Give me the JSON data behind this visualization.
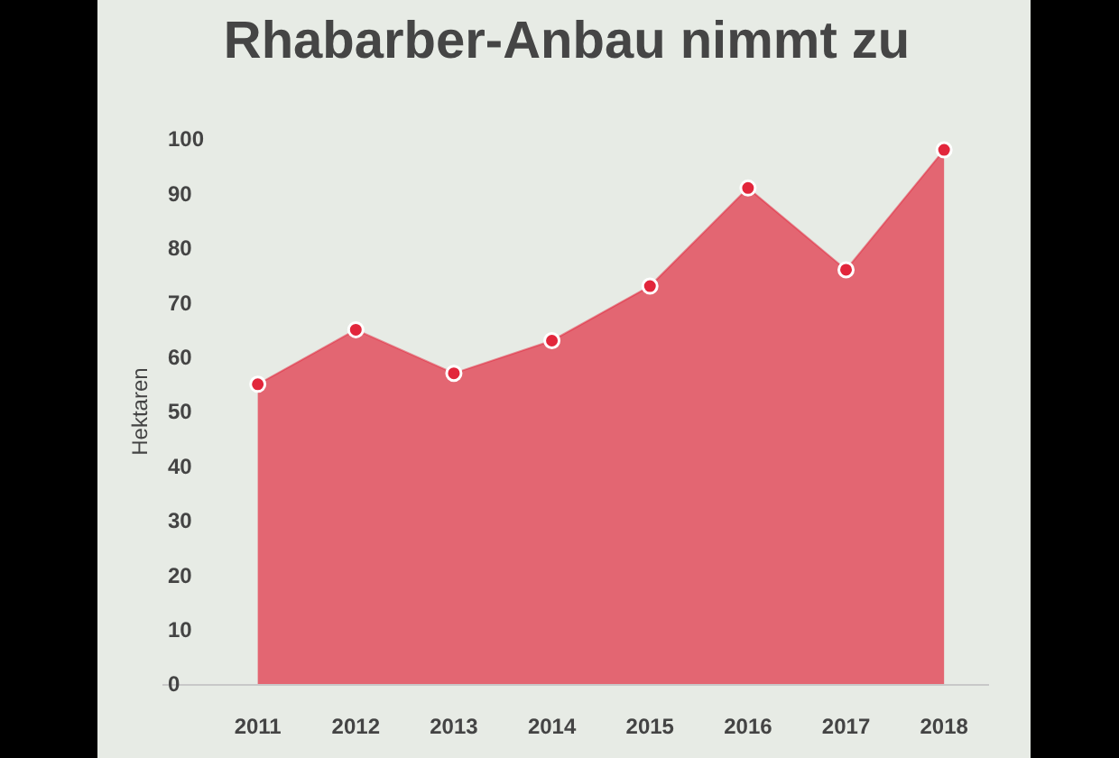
{
  "chart_data": {
    "type": "area",
    "title": "Rhabarber-Anbau nimmt zu",
    "ylabel": "Hektaren",
    "categories": [
      "2011",
      "2012",
      "2013",
      "2014",
      "2015",
      "2016",
      "2017",
      "2018"
    ],
    "values": [
      55,
      65,
      57,
      63,
      73,
      91,
      76,
      98
    ],
    "color": "#e2263b",
    "ylim": [
      0,
      100
    ],
    "yticks": [
      0,
      10,
      20,
      30,
      40,
      50,
      60,
      70,
      80,
      90,
      100
    ],
    "grid": false,
    "legend": false,
    "marker": "circle"
  }
}
